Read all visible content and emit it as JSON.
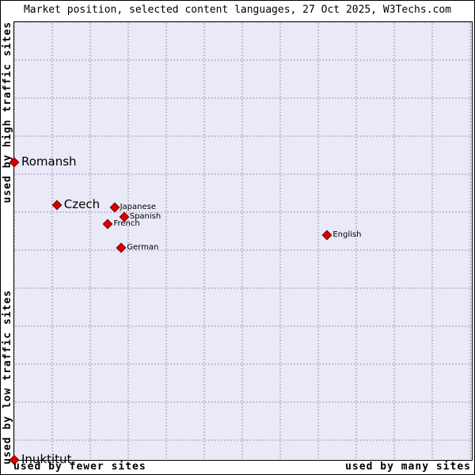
{
  "title": "Market position, selected content languages, 27 Oct 2025, W3Techs.com",
  "axis_labels": {
    "y_top": "used by high traffic sites",
    "y_bottom": "used by low traffic sites",
    "x_left": "used by fewer sites",
    "x_right": "used by many sites"
  },
  "colors": {
    "plot_background": "#e9e9f7",
    "grid_dot": "#b4b4cd",
    "marker_fill": "#d60000",
    "marker_border": "#7a0000"
  },
  "chart_data": {
    "type": "scatter",
    "title": "Market position, selected content languages, 27 Oct 2025, W3Techs.com",
    "x_axis": {
      "label_left": "used by fewer sites",
      "label_right": "used by many sites",
      "range": [
        0,
        100
      ],
      "numeric_ticks": false
    },
    "y_axis": {
      "label_bottom": "used by low traffic sites",
      "label_top": "used by high traffic sites",
      "range": [
        0,
        100
      ],
      "numeric_ticks": false
    },
    "grid": true,
    "marker": "diamond",
    "points": [
      {
        "label": "Romansh",
        "x": 0.0,
        "y": 68.0,
        "label_size": "large"
      },
      {
        "label": "Czech",
        "x": 9.3,
        "y": 58.3,
        "label_size": "large"
      },
      {
        "label": "Japanese",
        "x": 21.9,
        "y": 57.6,
        "label_size": "small"
      },
      {
        "label": "Spanish",
        "x": 24.0,
        "y": 55.6,
        "label_size": "small"
      },
      {
        "label": "French",
        "x": 20.5,
        "y": 53.8,
        "label_size": "small"
      },
      {
        "label": "German",
        "x": 23.4,
        "y": 48.4,
        "label_size": "small"
      },
      {
        "label": "English",
        "x": 68.4,
        "y": 51.4,
        "label_size": "small"
      },
      {
        "label": "Inuktitut",
        "x": 0.0,
        "y": 0.0,
        "label_size": "large"
      }
    ]
  }
}
